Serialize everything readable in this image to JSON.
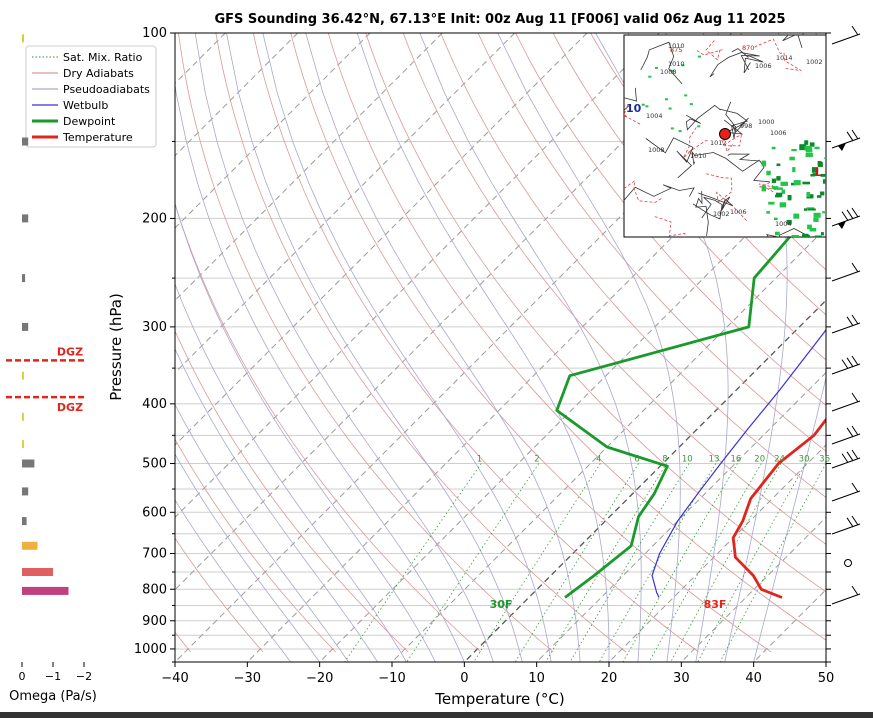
{
  "chart_data": {
    "type": "line",
    "title": "GFS Sounding 36.42°N, 67.13°E Init: 00z Aug 11 [F006] valid 06z Aug 11 2025",
    "xlabel": "Temperature (°C)",
    "ylabel": "Pressure (hPa)",
    "xlim": [
      -40,
      50
    ],
    "ylim": [
      1050,
      100
    ],
    "y_scale": "log",
    "grid": true,
    "x_ticks": [
      "−40",
      "−30",
      "−20",
      "−10",
      "0",
      "10",
      "20",
      "30",
      "40",
      "50"
    ],
    "y_ticks": [
      {
        "p": 100,
        "label": "100"
      },
      {
        "p": 200,
        "label": "200"
      },
      {
        "p": 300,
        "label": "300"
      },
      {
        "p": 400,
        "label": "400"
      },
      {
        "p": 500,
        "label": "500"
      },
      {
        "p": 600,
        "label": "600"
      },
      {
        "p": 700,
        "label": "700"
      },
      {
        "p": 800,
        "label": "800"
      },
      {
        "p": 900,
        "label": "900"
      },
      {
        "p": 1000,
        "label": "1000"
      }
    ],
    "legend": {
      "placement": "top-left",
      "entries": [
        {
          "label": "Sat. Mix. Ratio",
          "color": "#2e8b2e",
          "style": "dotted",
          "width": 1
        },
        {
          "label": "Dry Adiabats",
          "color": "#d08080",
          "style": "solid",
          "width": 1
        },
        {
          "label": "Pseudoadiabats",
          "color": "#9090c0",
          "style": "solid",
          "width": 1
        },
        {
          "label": "Wetbulb",
          "color": "#3a30d8",
          "style": "solid",
          "width": 1.2
        },
        {
          "label": "Dewpoint",
          "color": "#1a9a2a",
          "style": "solid",
          "width": 3
        },
        {
          "label": "Temperature",
          "color": "#e0261c",
          "style": "solid",
          "width": 3
        }
      ]
    },
    "series": [
      {
        "name": "Temperature",
        "color": "#e0261c",
        "points": [
          [
            35,
            825
          ],
          [
            31,
            800
          ],
          [
            28,
            760
          ],
          [
            23,
            710
          ],
          [
            20,
            660
          ],
          [
            19,
            620
          ],
          [
            17,
            570
          ],
          [
            16,
            500
          ],
          [
            17,
            450
          ],
          [
            16,
            400
          ],
          [
            13,
            355
          ],
          [
            9,
            310
          ],
          [
            2,
            260
          ],
          [
            -5,
            210
          ],
          [
            -9,
            150
          ],
          [
            -12,
            100
          ]
        ]
      },
      {
        "name": "Dewpoint",
        "color": "#1a9a2a",
        "points": [
          [
            5,
            825
          ],
          [
            6,
            760
          ],
          [
            7,
            680
          ],
          [
            4,
            610
          ],
          [
            3,
            560
          ],
          [
            1,
            505
          ],
          [
            -10,
            470
          ],
          [
            -22,
            410
          ],
          [
            -25,
            360
          ],
          [
            -7,
            300
          ],
          [
            -13,
            250
          ],
          [
            -14,
            205
          ],
          [
            -20,
            150
          ],
          [
            -20,
            100
          ]
        ]
      },
      {
        "name": "Wetbulb",
        "color": "#3a30d8",
        "points": [
          [
            18,
            825
          ],
          [
            17,
            810
          ],
          [
            14,
            760
          ],
          [
            12,
            700
          ],
          [
            10,
            620
          ],
          [
            9,
            560
          ],
          [
            8,
            500
          ],
          [
            7,
            440
          ],
          [
            6,
            380
          ],
          [
            4,
            300
          ],
          [
            1,
            260
          ],
          [
            -3,
            210
          ],
          [
            -9,
            150
          ]
        ]
      }
    ],
    "mixing_ratio_labels": [
      "1",
      "2",
      "4",
      "6",
      "8",
      "10",
      "13",
      "16",
      "20",
      "24",
      "30",
      "36"
    ],
    "annotations": [
      {
        "text": "30F",
        "color": "#1a9a2a"
      },
      {
        "text": "83F",
        "color": "#e0261c"
      }
    ],
    "omega": {
      "xlabel": "Omega (Pa/s)",
      "ticks": [
        "0",
        "−1",
        "−2"
      ],
      "dgz_label": "DGZ",
      "dgz_color": "#e0261c",
      "bars": [
        {
          "p": 102,
          "v": 0.05,
          "color": "#d8d020"
        },
        {
          "p": 150,
          "v": 0.2,
          "color": "#777777"
        },
        {
          "p": 200,
          "v": 0.2,
          "color": "#777777"
        },
        {
          "p": 250,
          "v": 0.1,
          "color": "#777777"
        },
        {
          "p": 300,
          "v": 0.2,
          "color": "#777777"
        },
        {
          "p": 360,
          "v": 0.05,
          "color": "#e0d040"
        },
        {
          "p": 420,
          "v": 0.05,
          "color": "#e0d040"
        },
        {
          "p": 465,
          "v": 0.05,
          "color": "#e0d040"
        },
        {
          "p": 500,
          "v": 0.4,
          "color": "#777777"
        },
        {
          "p": 555,
          "v": 0.2,
          "color": "#777777"
        },
        {
          "p": 620,
          "v": 0.15,
          "color": "#777777"
        },
        {
          "p": 680,
          "v": 0.5,
          "color": "#f0b040"
        },
        {
          "p": 750,
          "v": 1.0,
          "color": "#e06060"
        },
        {
          "p": 805,
          "v": 1.5,
          "color": "#c04080"
        }
      ],
      "dgz_pressures": [
        340,
        390
      ]
    },
    "map_labels": [
      "1010",
      "1008",
      "1006",
      "1014",
      "1002",
      "1004",
      "1012",
      "1010",
      "1000",
      "998",
      "1006",
      "1004",
      "1002",
      "1006",
      "1008",
      "1010",
      "10",
      "L",
      "870",
      "875"
    ]
  }
}
